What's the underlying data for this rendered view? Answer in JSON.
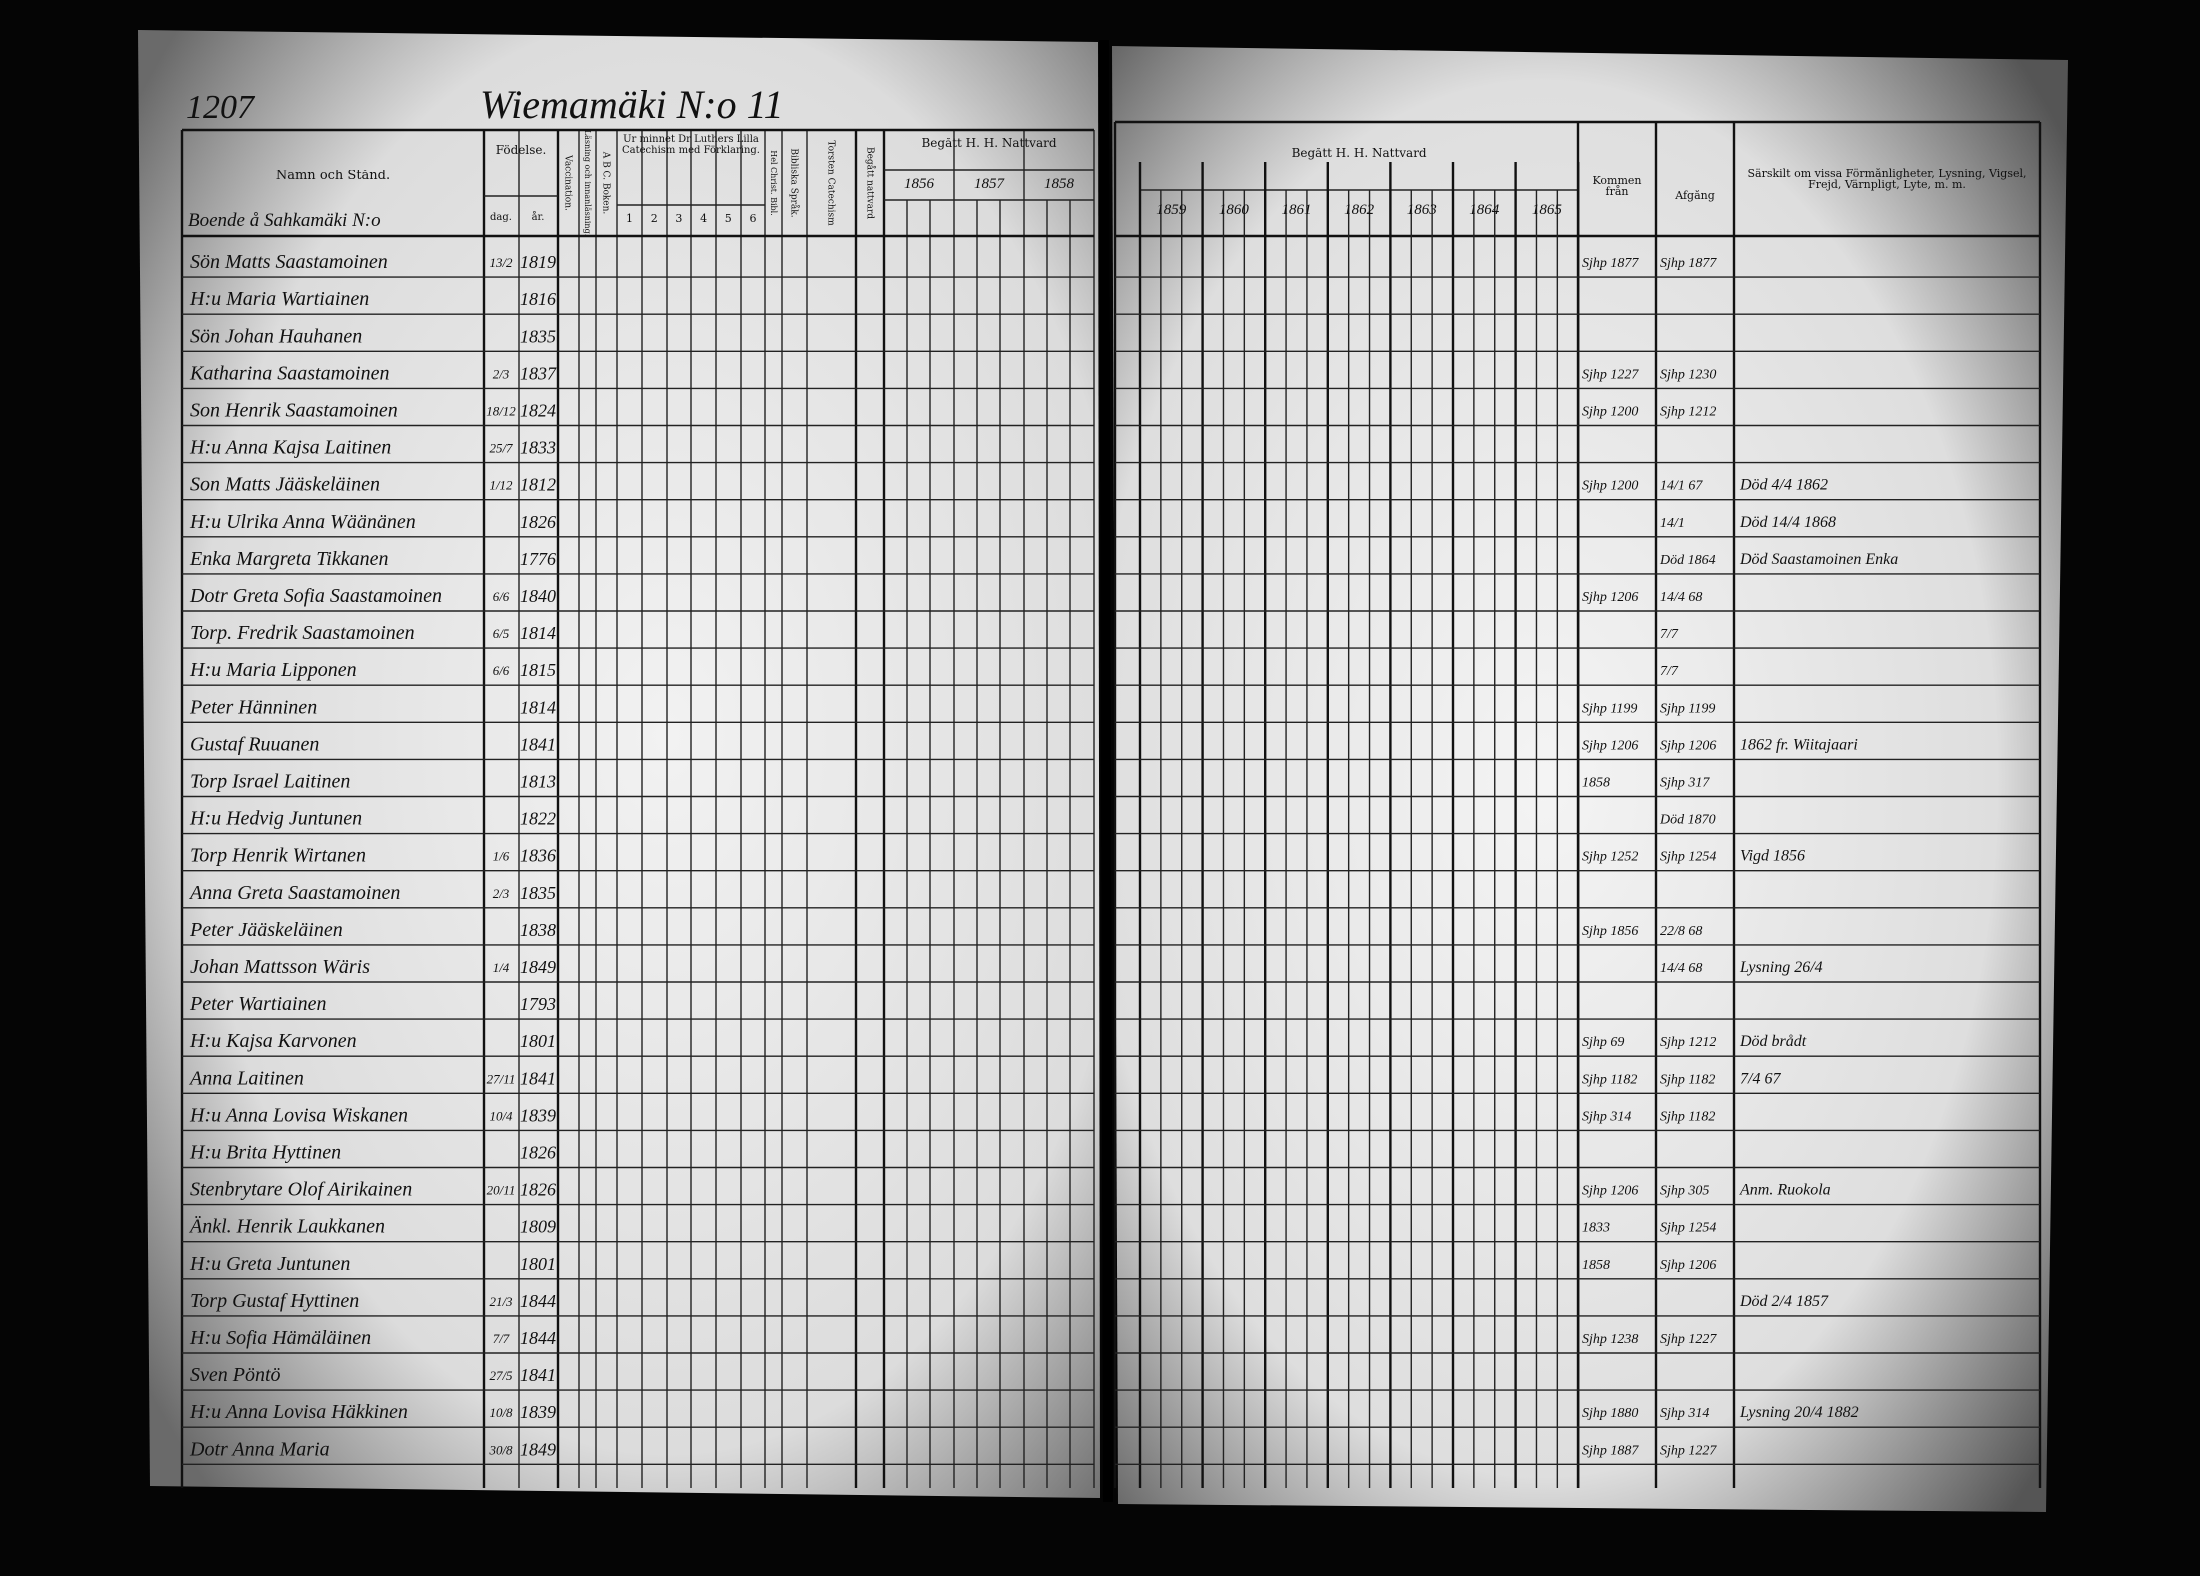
{
  "header": {
    "page_number": "1207",
    "village": "Wiemamäki N:o 11",
    "subheading": "Boende å Sahkamäki N:o"
  },
  "left_columns": {
    "name": "Namn och Stånd.",
    "birth": "Födelse.",
    "day": "dag.",
    "year": "år.",
    "vaccination": "Vaccination.",
    "reading": "Läsning och innanläsning.",
    "abc": "A B C. Boken.",
    "catechism": "Ur minnet Dr Luthers Lilla Catechism med Förklaring.",
    "christ": "Hel Christ. Bibl.",
    "bible": "Bibliska Språk.",
    "torsten": "Torsten Catechism",
    "admitted": "Begått nattvard",
    "communion": "Begått H. H. Nattvard"
  },
  "catechism_parts": [
    "1",
    "2",
    "3",
    "4",
    "5",
    "6"
  ],
  "left_years": [
    "1856",
    "1857",
    "1858"
  ],
  "right_title": "Begått H. H. Nattvard",
  "right_years": [
    "1859",
    "1860",
    "1861",
    "1862",
    "1863",
    "1864",
    "1865"
  ],
  "right_columns": {
    "from": "Kommen från",
    "left": "Afgång",
    "notes": "Särskilt om vissa Förmånligheter, Lysning, Vigsel, Frejd, Värnpligt, Lyte, m. m."
  },
  "rows": [
    {
      "name": "Sön Matts Saastamoinen",
      "day": "13/2",
      "year": "1819",
      "from": "Sjhp 1877",
      "left": "Sjhp 1877"
    },
    {
      "name": "H:u Maria Wartiainen",
      "year": "1816"
    },
    {
      "name": "Sön Johan Hauhanen",
      "year": "1835"
    },
    {
      "name": "Katharina Saastamoinen",
      "day": "2/3",
      "year": "1837",
      "from": "Sjhp 1227",
      "left": "Sjhp 1230"
    },
    {
      "name": "Son Henrik Saastamoinen",
      "day": "18/12",
      "year": "1824",
      "from": "Sjhp 1200",
      "left": "Sjhp 1212"
    },
    {
      "name": "H:u Anna Kajsa Laitinen",
      "day": "25/7",
      "year": "1833"
    },
    {
      "name": "Son Matts Jääskeläinen",
      "day": "1/12",
      "year": "1812",
      "from": "Sjhp 1200",
      "left": "14/1 67",
      "note": "Död 4/4 1862"
    },
    {
      "name": "H:u Ulrika Anna Wäänänen",
      "year": "1826",
      "left": "14/1",
      "note": "Död 14/4 1868"
    },
    {
      "name": "Enka Margreta Tikkanen",
      "year": "1776",
      "left": "Död 1864",
      "note": "Död Saastamoinen Enka"
    },
    {
      "name": "Dotr Greta Sofia Saastamoinen",
      "day": "6/6",
      "year": "1840",
      "from": "Sjhp 1206",
      "left": "14/4 68"
    },
    {
      "name": "Torp. Fredrik Saastamoinen",
      "day": "6/5",
      "year": "1814",
      "left": "7/7"
    },
    {
      "name": "H:u Maria Lipponen",
      "day": "6/6",
      "year": "1815",
      "left": "7/7"
    },
    {
      "name": "Peter Hänninen",
      "year": "1814",
      "from": "Sjhp 1199",
      "left": "Sjhp 1199"
    },
    {
      "name": "Gustaf Ruuanen",
      "year": "1841",
      "from": "Sjhp 1206",
      "left": "Sjhp 1206",
      "note": "1862 fr. Wiitajaari"
    },
    {
      "name": "Torp Israel Laitinen",
      "year": "1813",
      "from": "1858",
      "left": "Sjhp 317"
    },
    {
      "name": "H:u Hedvig Juntunen",
      "year": "1822",
      "left": "Död 1870"
    },
    {
      "name": "Torp Henrik Wirtanen",
      "day": "1/6",
      "year": "1836",
      "from": "Sjhp 1252",
      "left": "Sjhp 1254",
      "note": "Vigd 1856"
    },
    {
      "name": "Anna Greta Saastamoinen",
      "day": "2/3",
      "year": "1835"
    },
    {
      "name": "Peter Jääskeläinen",
      "year": "1838",
      "from": "Sjhp 1856",
      "left": "22/8 68"
    },
    {
      "name": "Johan Mattsson Wäris",
      "day": "1/4",
      "year": "1849",
      "left": "14/4 68",
      "note": "Lysning 26/4"
    },
    {
      "name": "Peter Wartiainen",
      "year": "1793"
    },
    {
      "name": "H:u Kajsa Karvonen",
      "year": "1801",
      "from": "Sjhp 69",
      "left": "Sjhp 1212",
      "note": "Död brådt"
    },
    {
      "name": "Anna Laitinen",
      "day": "27/11",
      "year": "1841",
      "from": "Sjhp 1182",
      "left": "Sjhp 1182",
      "note": "7/4 67"
    },
    {
      "name": "H:u Anna Lovisa Wiskanen",
      "day": "10/4",
      "year": "1839",
      "from": "Sjhp 314",
      "left": "Sjhp 1182"
    },
    {
      "name": "H:u Brita Hyttinen",
      "year": "1826"
    },
    {
      "name": "Stenbrytare Olof Airikainen",
      "day": "20/11",
      "year": "1826",
      "from": "Sjhp 1206",
      "left": "Sjhp 305",
      "note": "Anm. Ruokola"
    },
    {
      "name": "Änkl. Henrik Laukkanen",
      "year": "1809",
      "from": "1833",
      "left": "Sjhp 1254"
    },
    {
      "name": "H:u Greta Juntunen",
      "year": "1801",
      "from": "1858",
      "left": "Sjhp 1206"
    },
    {
      "name": "Torp Gustaf Hyttinen",
      "day": "21/3",
      "year": "1844",
      "note": "Död 2/4 1857"
    },
    {
      "name": "H:u Sofia Hämäläinen",
      "day": "7/7",
      "year": "1844",
      "from": "Sjhp 1238",
      "left": "Sjhp 1227"
    },
    {
      "name": "Sven Pöntö",
      "day": "27/5",
      "year": "1841"
    },
    {
      "name": "H:u Anna Lovisa Häkkinen",
      "day": "10/8",
      "year": "1839",
      "from": "Sjhp 1880",
      "left": "Sjhp 314",
      "note": "Lysning 20/4 1882"
    },
    {
      "name": "Dotr Anna Maria",
      "day": "30/8",
      "year": "1849",
      "from": "Sjhp 1887",
      "left": "Sjhp 1227"
    }
  ]
}
